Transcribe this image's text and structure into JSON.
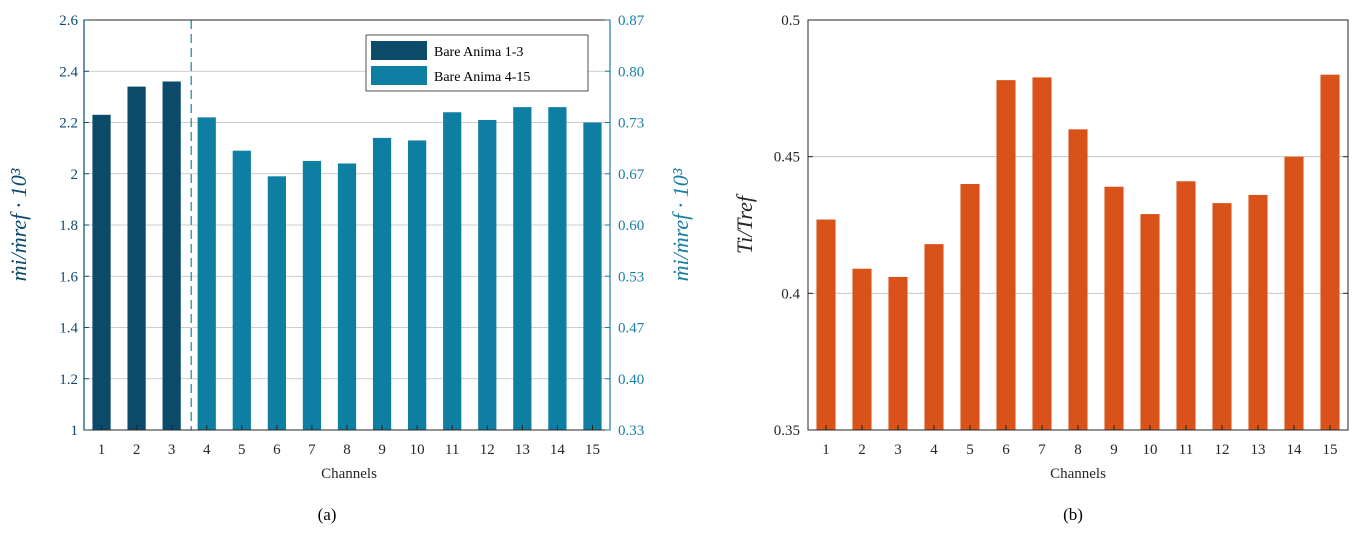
{
  "chart_data": [
    {
      "type": "bar",
      "caption": "(a)",
      "xlabel": "Channels",
      "ylabel": "ṁi/ṁref · 10³",
      "ylabel_right": "ṁi/ṁref · 10³",
      "categories": [
        "1",
        "2",
        "3",
        "4",
        "5",
        "6",
        "7",
        "8",
        "9",
        "10",
        "11",
        "12",
        "13",
        "14",
        "15"
      ],
      "ylim": [
        1,
        2.6
      ],
      "yticks": [
        1,
        1.2,
        1.4,
        1.6,
        1.8,
        2,
        2.2,
        2.4,
        2.6
      ],
      "yticklabels": [
        "1",
        "1.2",
        "1.4",
        "1.6",
        "1.8",
        "2",
        "2.2",
        "2.4",
        "2.6"
      ],
      "ylim_right": [
        0.33,
        0.87
      ],
      "yticks_right_labels": [
        "0.33",
        "0.40",
        "0.47",
        "0.53",
        "0.60",
        "0.67",
        "0.73",
        "0.80",
        "0.87"
      ],
      "grid": true,
      "legend_position": "top-right",
      "divider_between": [
        3,
        4
      ],
      "series": [
        {
          "name": "Bare Anima 1-3",
          "color": "#0c4a6a",
          "x": [
            1,
            2,
            3
          ],
          "values": [
            2.23,
            2.34,
            2.36
          ]
        },
        {
          "name": "Bare Anima 4-15",
          "color": "#0e7fa3",
          "x": [
            4,
            5,
            6,
            7,
            8,
            9,
            10,
            11,
            12,
            13,
            14,
            15
          ],
          "values": [
            2.22,
            2.09,
            1.99,
            2.05,
            2.04,
            2.14,
            2.13,
            2.24,
            2.21,
            2.26,
            2.26,
            2.2
          ]
        }
      ],
      "colors": {
        "axis_left": "#0c4a6a",
        "axis_right": "#1a7ea3",
        "grid": "#bdbdbd"
      }
    },
    {
      "type": "bar",
      "caption": "(b)",
      "xlabel": "Channels",
      "ylabel": "Ti/Tref",
      "categories": [
        "1",
        "2",
        "3",
        "4",
        "5",
        "6",
        "7",
        "8",
        "9",
        "10",
        "11",
        "12",
        "13",
        "14",
        "15"
      ],
      "ylim": [
        0.35,
        0.5
      ],
      "yticks": [
        0.35,
        0.4,
        0.45,
        0.5
      ],
      "yticklabels": [
        "0.35",
        "0.4",
        "0.45",
        "0.5"
      ],
      "grid": true,
      "series": [
        {
          "color": "#d95219",
          "values": [
            0.427,
            0.409,
            0.406,
            0.418,
            0.44,
            0.478,
            0.479,
            0.46,
            0.439,
            0.429,
            0.441,
            0.433,
            0.436,
            0.45,
            0.48
          ]
        }
      ],
      "colors": {
        "axis": "#262626",
        "grid": "#bdbdbd"
      }
    }
  ]
}
